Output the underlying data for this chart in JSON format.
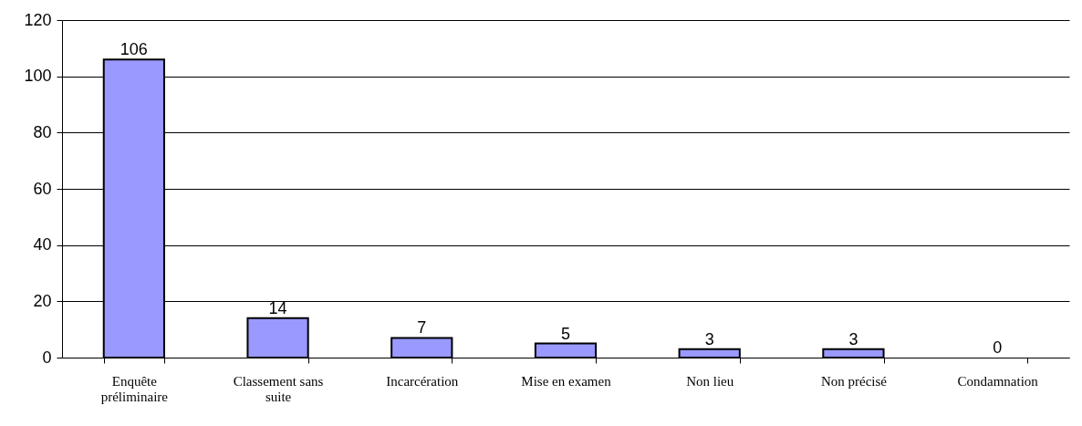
{
  "chart_data": {
    "type": "bar",
    "categories": [
      "Enquête préliminaire",
      "Classement sans suite",
      "Incarcération",
      "Mise en examen",
      "Non lieu",
      "Non précisé",
      "Condamnation"
    ],
    "values": [
      106,
      14,
      7,
      5,
      3,
      3,
      0
    ],
    "color": "#9999ff",
    "ylim": [
      0,
      120
    ],
    "yticks": [
      0,
      20,
      40,
      60,
      80,
      100,
      120
    ],
    "grid": "y",
    "data_labels": true
  }
}
